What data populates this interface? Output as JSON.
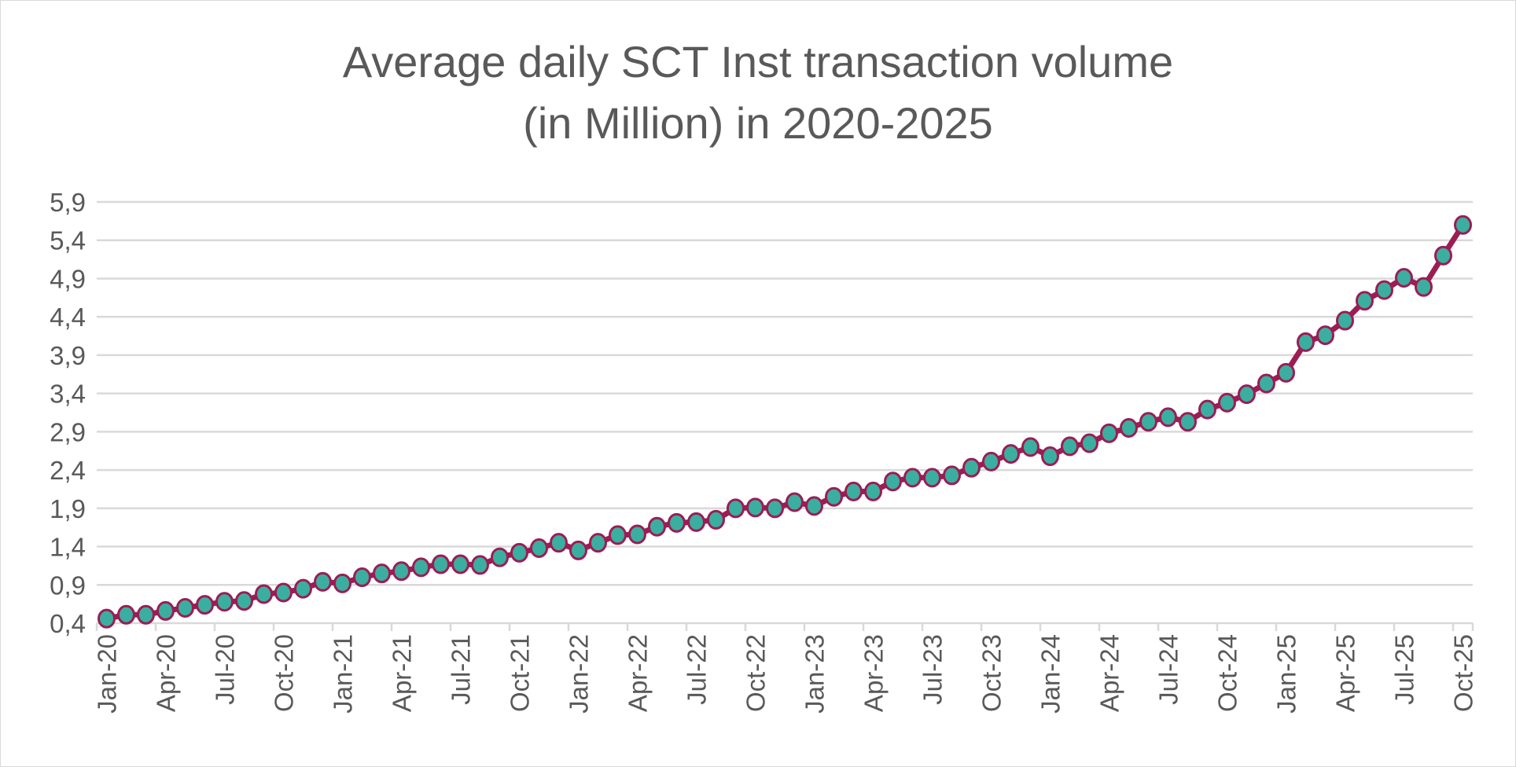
{
  "chart_data": {
    "type": "line",
    "title_line1": "Average daily SCT Inst transaction volume",
    "title_line2": "(in Million) in 2020-2025",
    "xlabel": "",
    "ylabel": "",
    "ylim": [
      0.4,
      5.9
    ],
    "yticks": [
      "0,4",
      "0,9",
      "1,4",
      "1,9",
      "2,4",
      "2,9",
      "3,4",
      "3,9",
      "4,4",
      "4,9",
      "5,4",
      "5,9"
    ],
    "ytick_values": [
      0.4,
      0.9,
      1.4,
      1.9,
      2.4,
      2.9,
      3.4,
      3.9,
      4.4,
      4.9,
      5.4,
      5.9
    ],
    "grid": true,
    "legend": "none",
    "colors": {
      "line": "#9b1d54",
      "marker_fill": "#3aafa0",
      "grid": "#d9d9d9",
      "text": "#595959"
    },
    "categories": [
      "Jan-20",
      "Feb-20",
      "Mar-20",
      "Apr-20",
      "May-20",
      "Jun-20",
      "Jul-20",
      "Aug-20",
      "Sep-20",
      "Oct-20",
      "Nov-20",
      "Dec-20",
      "Jan-21",
      "Feb-21",
      "Mar-21",
      "Apr-21",
      "May-21",
      "Jun-21",
      "Jul-21",
      "Aug-21",
      "Sep-21",
      "Oct-21",
      "Nov-21",
      "Dec-21",
      "Jan-22",
      "Feb-22",
      "Mar-22",
      "Apr-22",
      "May-22",
      "Jun-22",
      "Jul-22",
      "Aug-22",
      "Sep-22",
      "Oct-22",
      "Nov-22",
      "Dec-22",
      "Jan-23",
      "Feb-23",
      "Mar-23",
      "Apr-23",
      "May-23",
      "Jun-23",
      "Jul-23",
      "Aug-23",
      "Sep-23",
      "Oct-23",
      "Nov-23",
      "Dec-23",
      "Jan-24",
      "Feb-24",
      "Mar-24",
      "Apr-24",
      "May-24",
      "Jun-24",
      "Jul-24",
      "Aug-24",
      "Sep-24",
      "Oct-24",
      "Nov-24",
      "Dec-24",
      "Jan-25",
      "Feb-25",
      "Mar-25",
      "Apr-25",
      "May-25",
      "Jun-25",
      "Jul-25",
      "Aug-25",
      "Sep-25",
      "Oct-25"
    ],
    "values": [
      0.46,
      0.51,
      0.51,
      0.56,
      0.6,
      0.64,
      0.68,
      0.69,
      0.78,
      0.8,
      0.85,
      0.94,
      0.92,
      1.0,
      1.05,
      1.08,
      1.13,
      1.17,
      1.17,
      1.16,
      1.26,
      1.32,
      1.38,
      1.45,
      1.35,
      1.45,
      1.55,
      1.56,
      1.66,
      1.71,
      1.72,
      1.75,
      1.9,
      1.91,
      1.9,
      1.98,
      1.93,
      2.05,
      2.12,
      2.12,
      2.25,
      2.3,
      2.3,
      2.33,
      2.43,
      2.51,
      2.61,
      2.7,
      2.58,
      2.71,
      2.75,
      2.88,
      2.95,
      3.03,
      3.09,
      3.03,
      3.19,
      3.28,
      3.39,
      3.53,
      3.67,
      4.07,
      4.16,
      4.35,
      4.61,
      4.75,
      4.91,
      4.79,
      5.2,
      5.6
    ],
    "xtick_labels": [
      "Jan-20",
      "Apr-20",
      "Jul-20",
      "Oct-20",
      "Jan-21",
      "Apr-21",
      "Jul-21",
      "Oct-21",
      "Jan-22",
      "Apr-22",
      "Jul-22",
      "Oct-22",
      "Jan-23",
      "Apr-23",
      "Jul-23",
      "Oct-23",
      "Jan-24",
      "Apr-24",
      "Jul-24",
      "Oct-24",
      "Jan-25",
      "Apr-25",
      "Jul-25",
      "Oct-25"
    ]
  }
}
